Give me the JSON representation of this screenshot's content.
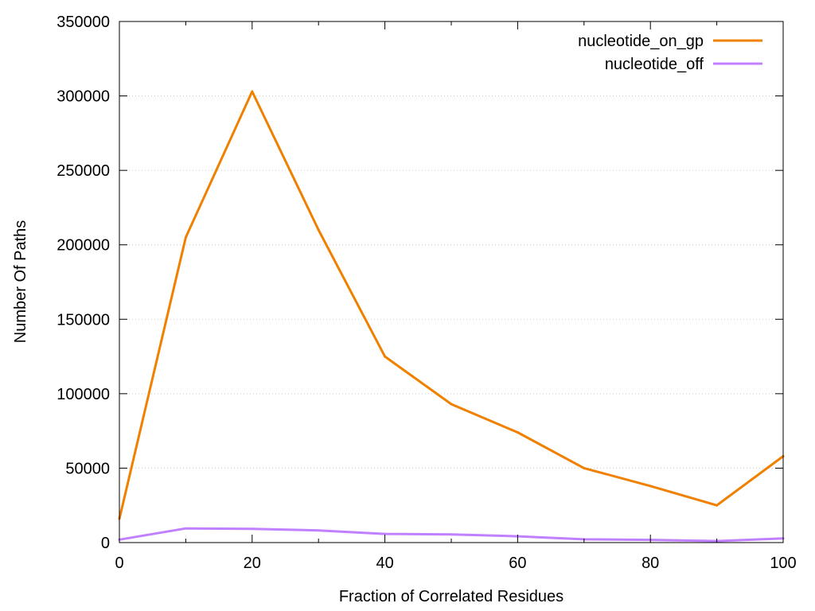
{
  "chart_data": {
    "type": "line",
    "xlabel": "Fraction of Correlated Residues",
    "ylabel": "Number Of Paths",
    "xlim": [
      0,
      100
    ],
    "ylim": [
      0,
      350000
    ],
    "xticks": [
      0,
      20,
      40,
      60,
      80,
      100
    ],
    "yticks": [
      0,
      50000,
      100000,
      150000,
      200000,
      250000,
      300000,
      350000
    ],
    "x_minor_ticks": [
      10,
      30,
      50,
      70,
      90
    ],
    "grid": "horizontal dotted",
    "legend": "top-right",
    "x": [
      0,
      10,
      20,
      30,
      40,
      50,
      60,
      70,
      80,
      90,
      100
    ],
    "series": [
      {
        "name": "nucleotide_on_gp",
        "color": "#f08000",
        "values": [
          16000,
          205000,
          303000,
          210000,
          125000,
          93000,
          74000,
          50000,
          38000,
          25000,
          58000
        ]
      },
      {
        "name": "nucleotide_off",
        "color": "#c080ff",
        "values": [
          2000,
          9500,
          9200,
          8200,
          5800,
          5500,
          4200,
          2200,
          1800,
          1000,
          2800
        ]
      }
    ]
  }
}
